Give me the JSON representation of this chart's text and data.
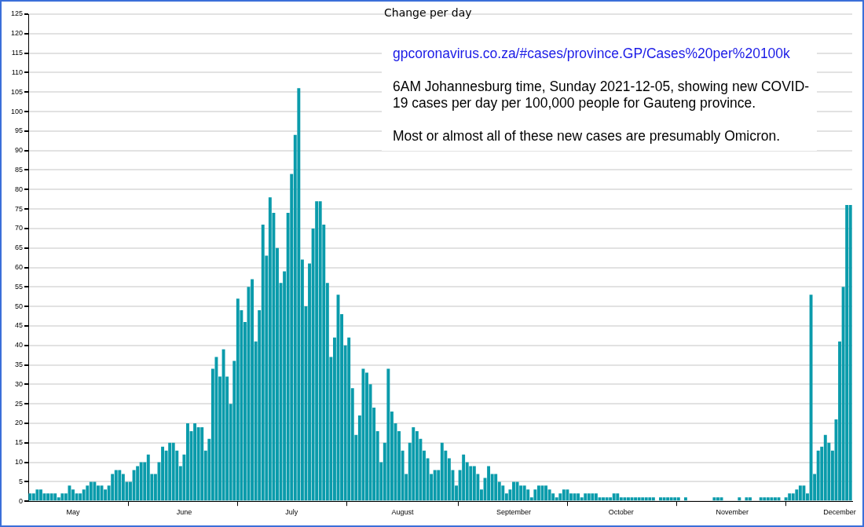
{
  "chart_data": {
    "type": "bar",
    "title": "Change per day",
    "annotations": [
      "gpcoronavirus.co.za/#cases/province.GP/Cases%20per%20100k",
      "6AM Johannesburg time, Sunday 2021-12-05, showing new COVID-19 cases per day per 100,000 people for Gauteng province.",
      "Most or almost all of these new cases are presumably Omicron."
    ],
    "x": [
      "2021-04-19",
      "2021-04-20",
      "2021-04-21",
      "2021-04-22",
      "2021-04-23",
      "2021-04-24",
      "2021-04-25",
      "2021-04-26",
      "2021-04-27",
      "2021-04-28",
      "2021-04-29",
      "2021-04-30",
      "2021-05-01",
      "2021-05-02",
      "2021-05-03",
      "2021-05-04",
      "2021-05-05",
      "2021-05-06",
      "2021-05-07",
      "2021-05-08",
      "2021-05-09",
      "2021-05-10",
      "2021-05-11",
      "2021-05-12",
      "2021-05-13",
      "2021-05-14",
      "2021-05-15",
      "2021-05-16",
      "2021-05-17",
      "2021-05-18",
      "2021-05-19",
      "2021-05-20",
      "2021-05-21",
      "2021-05-22",
      "2021-05-23",
      "2021-05-24",
      "2021-05-25",
      "2021-05-26",
      "2021-05-27",
      "2021-05-28",
      "2021-05-29",
      "2021-05-30",
      "2021-05-31",
      "2021-06-01",
      "2021-06-02",
      "2021-06-03",
      "2021-06-04",
      "2021-06-05",
      "2021-06-06",
      "2021-06-07",
      "2021-06-08",
      "2021-06-09",
      "2021-06-10",
      "2021-06-11",
      "2021-06-12",
      "2021-06-13",
      "2021-06-14",
      "2021-06-15",
      "2021-06-16",
      "2021-06-17",
      "2021-06-18",
      "2021-06-19",
      "2021-06-20",
      "2021-06-21",
      "2021-06-22",
      "2021-06-23",
      "2021-06-24",
      "2021-06-25",
      "2021-06-26",
      "2021-06-27",
      "2021-06-28",
      "2021-06-29",
      "2021-06-30",
      "2021-07-01",
      "2021-07-02",
      "2021-07-03",
      "2021-07-04",
      "2021-07-05",
      "2021-07-06",
      "2021-07-07",
      "2021-07-08",
      "2021-07-09",
      "2021-07-10",
      "2021-07-11",
      "2021-07-12",
      "2021-07-13",
      "2021-07-14",
      "2021-07-15",
      "2021-07-16",
      "2021-07-17",
      "2021-07-18",
      "2021-07-19",
      "2021-07-20",
      "2021-07-21",
      "2021-07-22",
      "2021-07-23",
      "2021-07-24",
      "2021-07-25",
      "2021-07-26",
      "2021-07-27",
      "2021-07-28",
      "2021-07-29",
      "2021-07-30",
      "2021-07-31",
      "2021-08-01",
      "2021-08-02",
      "2021-08-03",
      "2021-08-04",
      "2021-08-05",
      "2021-08-06",
      "2021-08-07",
      "2021-08-08",
      "2021-08-09",
      "2021-08-10",
      "2021-08-11",
      "2021-08-12",
      "2021-08-13",
      "2021-08-14",
      "2021-08-15",
      "2021-08-16",
      "2021-08-17",
      "2021-08-18",
      "2021-08-19",
      "2021-08-20",
      "2021-08-21",
      "2021-08-22",
      "2021-08-23",
      "2021-08-24",
      "2021-08-25",
      "2021-08-26",
      "2021-08-27",
      "2021-08-28",
      "2021-08-29",
      "2021-08-30",
      "2021-08-31",
      "2021-09-01",
      "2021-09-02",
      "2021-09-03",
      "2021-09-04",
      "2021-09-05",
      "2021-09-06",
      "2021-09-07",
      "2021-09-08",
      "2021-09-09",
      "2021-09-10",
      "2021-09-11",
      "2021-09-12",
      "2021-09-13",
      "2021-09-14",
      "2021-09-15",
      "2021-09-16",
      "2021-09-17",
      "2021-09-18",
      "2021-09-19",
      "2021-09-20",
      "2021-09-21",
      "2021-09-22",
      "2021-09-23",
      "2021-09-24",
      "2021-09-25",
      "2021-09-26",
      "2021-09-27",
      "2021-09-28",
      "2021-09-29",
      "2021-09-30",
      "2021-10-01",
      "2021-10-02",
      "2021-10-03",
      "2021-10-04",
      "2021-10-05",
      "2021-10-06",
      "2021-10-07",
      "2021-10-08",
      "2021-10-09",
      "2021-10-10",
      "2021-10-11",
      "2021-10-12",
      "2021-10-13",
      "2021-10-14",
      "2021-10-15",
      "2021-10-16",
      "2021-10-17",
      "2021-10-18",
      "2021-10-19",
      "2021-10-20",
      "2021-10-21",
      "2021-10-22",
      "2021-10-23",
      "2021-10-24",
      "2021-10-25",
      "2021-10-26",
      "2021-10-27",
      "2021-10-28",
      "2021-10-29",
      "2021-10-30",
      "2021-10-31",
      "2021-11-01",
      "2021-11-02",
      "2021-11-03",
      "2021-11-04",
      "2021-11-05",
      "2021-11-06",
      "2021-11-07",
      "2021-11-08",
      "2021-11-09",
      "2021-11-10",
      "2021-11-11",
      "2021-11-12",
      "2021-11-13",
      "2021-11-14",
      "2021-11-15",
      "2021-11-16",
      "2021-11-17",
      "2021-11-18",
      "2021-11-19",
      "2021-11-20",
      "2021-11-21",
      "2021-11-22",
      "2021-11-23",
      "2021-11-24",
      "2021-11-25",
      "2021-11-26",
      "2021-11-27",
      "2021-11-28",
      "2021-11-29",
      "2021-11-30",
      "2021-12-01",
      "2021-12-02",
      "2021-12-03",
      "2021-12-04"
    ],
    "color": "#0a9bab",
    "values": [
      2,
      2,
      3,
      3,
      2,
      2,
      2,
      2,
      1,
      2,
      2,
      4,
      3,
      2,
      2,
      3,
      4,
      5,
      5,
      4,
      4,
      3,
      4,
      7,
      8,
      8,
      7,
      5,
      5,
      8,
      9,
      10,
      10,
      12,
      7,
      7,
      10,
      14,
      13,
      15,
      15,
      13,
      9,
      12,
      20,
      18,
      20,
      19,
      19,
      13,
      16,
      34,
      37,
      32,
      39,
      32,
      25,
      36,
      52,
      49,
      46,
      55,
      57,
      41,
      49,
      71,
      63,
      78,
      74,
      65,
      56,
      59,
      74,
      84,
      94,
      106,
      62,
      50,
      61,
      70,
      77,
      77,
      71,
      56,
      37,
      42,
      53,
      48,
      40,
      42,
      29,
      17,
      22,
      34,
      33,
      30,
      24,
      18,
      10,
      15,
      34,
      23,
      20,
      18,
      13,
      7,
      15,
      19,
      18,
      16,
      13,
      11,
      7,
      8,
      8,
      15,
      13,
      11,
      8,
      4,
      8,
      12,
      10,
      9,
      9,
      7,
      3,
      6,
      9,
      7,
      7,
      5,
      4,
      2,
      3,
      5,
      5,
      4,
      4,
      3,
      1,
      3,
      4,
      4,
      4,
      3,
      2,
      1,
      2,
      3,
      3,
      2,
      2,
      2,
      1,
      2,
      2,
      2,
      2,
      1,
      1,
      1,
      1,
      2,
      2,
      1,
      1,
      1,
      1,
      1,
      1,
      1,
      1,
      1,
      1,
      0,
      1,
      1,
      1,
      1,
      1,
      1,
      0,
      1,
      0,
      0,
      0,
      0,
      0,
      0,
      0,
      1,
      1,
      1,
      0,
      0,
      0,
      0,
      1,
      0,
      1,
      1,
      0,
      0,
      1,
      1,
      1,
      1,
      1,
      1,
      0,
      1,
      2,
      2,
      3,
      4,
      4,
      2,
      53,
      7,
      13,
      14,
      17,
      15,
      13,
      21,
      41,
      55,
      76,
      76
    ],
    "xlim": [
      "2021-04-18T12:00",
      "2021-12-04T12:00"
    ],
    "xticks": [
      {
        "value": "2021-05-01",
        "label": "May"
      },
      {
        "value": "2021-06-01",
        "label": "June"
      },
      {
        "value": "2021-07-01",
        "label": "July"
      },
      {
        "value": "2021-08-01",
        "label": "August"
      },
      {
        "value": "2021-09-01",
        "label": "September"
      },
      {
        "value": "2021-10-01",
        "label": "October"
      },
      {
        "value": "2021-11-01",
        "label": "November"
      },
      {
        "value": "2021-12-01",
        "label": "December"
      }
    ],
    "ylim": [
      0,
      125
    ],
    "yticks": [
      0,
      5,
      10,
      15,
      20,
      25,
      30,
      35,
      40,
      45,
      50,
      55,
      60,
      65,
      70,
      75,
      80,
      85,
      90,
      95,
      100,
      105,
      110,
      115,
      120,
      125
    ],
    "grid": "y",
    "legend": false
  }
}
